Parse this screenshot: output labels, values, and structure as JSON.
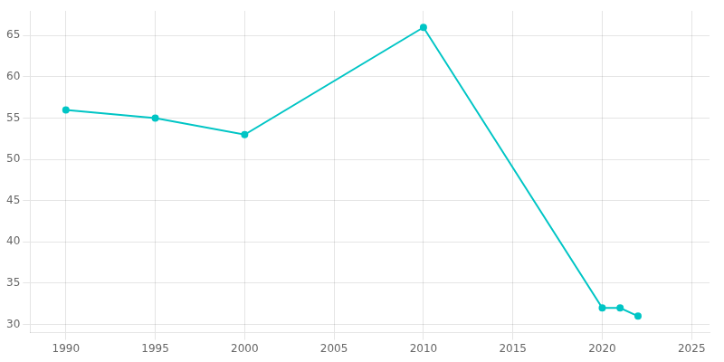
{
  "chart_data": {
    "type": "line",
    "x": [
      1990,
      1995,
      2000,
      2010,
      2020,
      2021,
      2022
    ],
    "values": [
      56,
      55,
      53,
      66,
      32,
      32,
      31
    ],
    "color": "#00C5C5",
    "marker": "o",
    "xlim": [
      1988,
      2026
    ],
    "ylim": [
      29,
      68
    ],
    "xticks": [
      1990,
      1995,
      2000,
      2005,
      2010,
      2015,
      2020,
      2025
    ],
    "yticks": [
      30,
      35,
      40,
      45,
      50,
      55,
      60,
      65
    ],
    "grid": true
  }
}
